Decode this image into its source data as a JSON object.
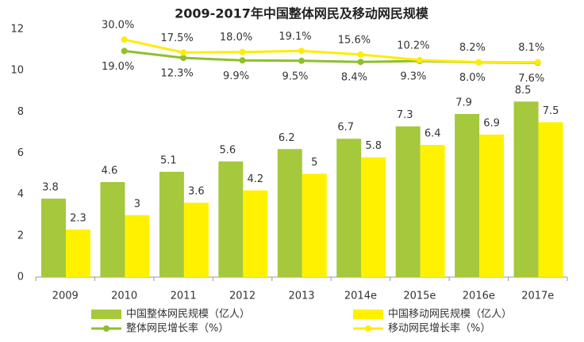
{
  "chart_data": {
    "type": "bar",
    "title": "2009-2017年中国整体网民及移动网民规模",
    "categories": [
      "2009",
      "2010",
      "2011",
      "2012",
      "2013",
      "2014e",
      "2015e",
      "2016e",
      "2017e"
    ],
    "ylim": [
      0,
      12
    ],
    "yticks": [
      0,
      2,
      4,
      6,
      8,
      10,
      12
    ],
    "y2lim": [
      -200,
      40
    ],
    "legend": "bottom",
    "series": [
      {
        "name": "中国整体网民规模（亿人）",
        "type": "bar",
        "color": "#a5c83c",
        "values": [
          3.8,
          4.6,
          5.1,
          5.6,
          6.2,
          6.7,
          7.3,
          7.9,
          8.5
        ]
      },
      {
        "name": "中国移动网民规模（亿人）",
        "type": "bar",
        "color": "#fff100",
        "values": [
          2.3,
          3.0,
          3.6,
          4.2,
          5.0,
          5.8,
          6.4,
          6.9,
          7.5
        ]
      },
      {
        "name": "整体网民增长率（%）",
        "type": "line",
        "axis": "y2",
        "color": "#8fbf2f",
        "values": [
          null,
          19.0,
          12.3,
          9.9,
          9.5,
          8.4,
          9.3,
          8.0,
          7.6
        ],
        "value_labels": [
          null,
          "19.0%",
          "12.3%",
          "9.9%",
          "9.5%",
          "8.4%",
          "9.3%",
          "8.0%",
          "7.6%"
        ]
      },
      {
        "name": "移动网民增长率（%）",
        "type": "line",
        "axis": "y2",
        "color": "#ffec00",
        "values": [
          null,
          30.0,
          17.5,
          18.0,
          19.1,
          15.6,
          10.2,
          8.2,
          8.1
        ],
        "value_labels": [
          null,
          "30.0%",
          "17.5%",
          "18.0%",
          "19.1%",
          "15.6%",
          "10.2%",
          "8.2%",
          "8.1%"
        ]
      }
    ]
  }
}
